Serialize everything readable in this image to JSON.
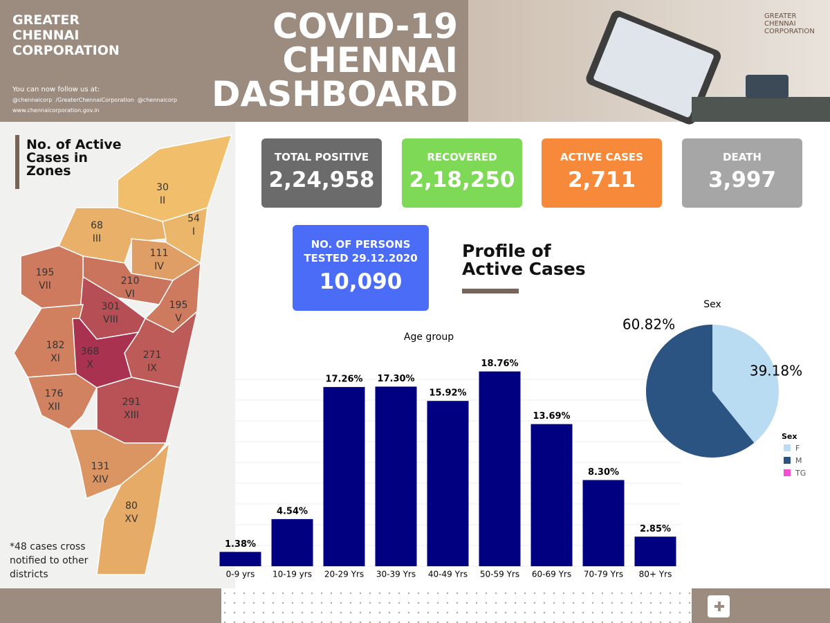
{
  "header": {
    "org": [
      "GREATER",
      "CHENNAI",
      "CORPORATION"
    ],
    "follow": "You can now follow us at:",
    "twitter": "@chennaicorp",
    "facebook": "/GreaterChennaiCorporation",
    "instagram": "@chennaicorp",
    "website": "www.chennaicorporation.gov.in",
    "title": [
      "COVID-19",
      "CHENNAI",
      "DASHBOARD"
    ],
    "logo": [
      "GREATER",
      "CHENNAI",
      "CORPORATION"
    ]
  },
  "cards": [
    {
      "label": "TOTAL POSITIVE",
      "value": "2,24,958"
    },
    {
      "label": "RECOVERED",
      "value": "2,18,250"
    },
    {
      "label": "ACTIVE CASES",
      "value": "2,711"
    },
    {
      "label": "DEATH",
      "value": "3,997"
    },
    {
      "label": "NO. OF PERSONS TESTED 29.12.2020",
      "value": "10,090"
    }
  ],
  "profile_title": "Profile of Active Cases",
  "map": {
    "title": "No. of Active Cases in Zones",
    "note": "*48 cases cross notified to other districts",
    "zones": [
      {
        "value": 54,
        "label": "I"
      },
      {
        "value": 30,
        "label": "II"
      },
      {
        "value": 68,
        "label": "III"
      },
      {
        "value": 111,
        "label": "IV"
      },
      {
        "value": 195,
        "label": "V"
      },
      {
        "value": 210,
        "label": "VI"
      },
      {
        "value": 195,
        "label": "VII"
      },
      {
        "value": 301,
        "label": "VIII"
      },
      {
        "value": 271,
        "label": "IX"
      },
      {
        "value": 368,
        "label": "X"
      },
      {
        "value": 182,
        "label": "XI"
      },
      {
        "value": 176,
        "label": "XII"
      },
      {
        "value": 291,
        "label": "XIII"
      },
      {
        "value": 131,
        "label": "XIV"
      },
      {
        "value": 80,
        "label": "XV"
      }
    ]
  },
  "chart_data": [
    {
      "type": "bar",
      "title": "Age group",
      "categories": [
        "0-9 yrs",
        "10-19 yrs",
        "20-29 Yrs",
        "30-39 Yrs",
        "40-49 Yrs",
        "50-59 Yrs",
        "60-69 Yrs",
        "70-79 Yrs",
        "80+ Yrs"
      ],
      "values": [
        1.38,
        4.54,
        17.26,
        17.3,
        15.92,
        18.76,
        13.69,
        8.3,
        2.85
      ],
      "value_labels": [
        "1.38%",
        "4.54%",
        "17.26%",
        "17.30%",
        "15.92%",
        "18.76%",
        "13.69%",
        "8.30%",
        "2.85%"
      ],
      "color": "#000080",
      "ylim": [
        0,
        20
      ],
      "grid": true
    },
    {
      "type": "pie",
      "title": "Sex",
      "legend_title": "Sex",
      "categories": [
        "F",
        "M",
        "TG"
      ],
      "values": [
        39.18,
        60.82,
        0
      ],
      "value_labels": [
        "39.18%",
        "60.82%",
        null
      ],
      "colors": [
        "#b9dcf2",
        "#2b5482",
        "#f04fd6"
      ],
      "legend": "bottom-right"
    }
  ]
}
